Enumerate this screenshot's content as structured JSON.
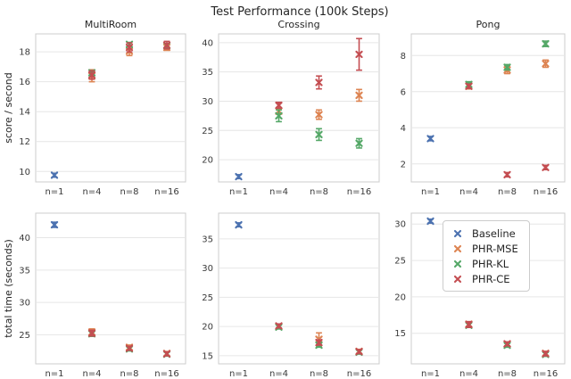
{
  "figure": {
    "title": "Test Performance (100k Steps)"
  },
  "legend": {
    "position": "inside bottom-right subplot, top-right corner",
    "items": [
      {
        "label": "Baseline",
        "color": "#4C72B0",
        "marker": "x"
      },
      {
        "label": "PHR-MSE",
        "color": "#DD8452",
        "marker": "x"
      },
      {
        "label": "PHR-KL",
        "color": "#55A868",
        "marker": "x"
      },
      {
        "label": "PHR-CE",
        "color": "#C44E52",
        "marker": "x"
      }
    ]
  },
  "colors": {
    "baseline_blue": "#4C72B0",
    "phr_mse_orange": "#DD8452",
    "phr_kl_green": "#55A868",
    "phr_ce_red": "#C44E52",
    "grid": "#e6e6e6",
    "spine": "#cccccc",
    "text": "#262626"
  },
  "chart_data": [
    {
      "type": "scatter",
      "title": "MultiRoom",
      "row": 0,
      "col": 0,
      "ylabel": "score / second",
      "categories": [
        "n=1",
        "n=4",
        "n=8",
        "n=16"
      ],
      "yticks": [
        10,
        12,
        14,
        16,
        18
      ],
      "ylim": [
        9.3,
        19.2
      ],
      "grid": "horizontal",
      "series": [
        {
          "name": "Baseline",
          "color": "#4C72B0",
          "points": [
            {
              "x": "n=1",
              "y": 9.75,
              "err": 0.12
            }
          ]
        },
        {
          "name": "PHR-MSE",
          "color": "#DD8452",
          "points": [
            {
              "x": "n=4",
              "y": 16.4,
              "err": 0.4
            },
            {
              "x": "n=8",
              "y": 18.05,
              "err": 0.3
            },
            {
              "x": "n=16",
              "y": 18.3,
              "err": 0.2
            }
          ]
        },
        {
          "name": "PHR-KL",
          "color": "#55A868",
          "points": [
            {
              "x": "n=4",
              "y": 16.6,
              "err": 0.15
            },
            {
              "x": "n=8",
              "y": 18.5,
              "err": 0.12
            },
            {
              "x": "n=16",
              "y": 18.42,
              "err": 0.15
            }
          ]
        },
        {
          "name": "PHR-CE",
          "color": "#C44E52",
          "points": [
            {
              "x": "n=4",
              "y": 16.45,
              "err": 0.28
            },
            {
              "x": "n=8",
              "y": 18.3,
              "err": 0.3
            },
            {
              "x": "n=16",
              "y": 18.45,
              "err": 0.25
            }
          ]
        }
      ]
    },
    {
      "type": "scatter",
      "title": "Crossing",
      "row": 0,
      "col": 1,
      "ylabel": "",
      "categories": [
        "n=1",
        "n=4",
        "n=8",
        "n=16"
      ],
      "yticks": [
        20,
        25,
        30,
        35,
        40
      ],
      "ylim": [
        16.2,
        41.5
      ],
      "grid": "horizontal",
      "series": [
        {
          "name": "Baseline",
          "color": "#4C72B0",
          "points": [
            {
              "x": "n=1",
              "y": 17.1,
              "err": 0.3
            }
          ]
        },
        {
          "name": "PHR-MSE",
          "color": "#DD8452",
          "points": [
            {
              "x": "n=4",
              "y": 28.3,
              "err": 0.45
            },
            {
              "x": "n=8",
              "y": 27.7,
              "err": 0.8
            },
            {
              "x": "n=16",
              "y": 31.0,
              "err": 1.0
            }
          ]
        },
        {
          "name": "PHR-KL",
          "color": "#55A868",
          "points": [
            {
              "x": "n=4",
              "y": 27.5,
              "err": 1.0
            },
            {
              "x": "n=8",
              "y": 24.3,
              "err": 1.0
            },
            {
              "x": "n=16",
              "y": 22.8,
              "err": 0.8
            }
          ]
        },
        {
          "name": "PHR-CE",
          "color": "#C44E52",
          "points": [
            {
              "x": "n=4",
              "y": 29.3,
              "err": 0.5
            },
            {
              "x": "n=8",
              "y": 33.2,
              "err": 1.1
            },
            {
              "x": "n=16",
              "y": 38.0,
              "err": 2.7
            }
          ]
        }
      ]
    },
    {
      "type": "scatter",
      "title": "Pong",
      "row": 0,
      "col": 2,
      "ylabel": "",
      "categories": [
        "n=1",
        "n=4",
        "n=8",
        "n=16"
      ],
      "yticks": [
        2,
        4,
        6,
        8
      ],
      "ylim": [
        1.0,
        9.2
      ],
      "grid": "horizontal",
      "series": [
        {
          "name": "Baseline",
          "color": "#4C72B0",
          "points": [
            {
              "x": "n=1",
              "y": 3.4,
              "err": 0.12
            }
          ]
        },
        {
          "name": "PHR-MSE",
          "color": "#DD8452",
          "points": [
            {
              "x": "n=4",
              "y": 6.3,
              "err": 0.15
            },
            {
              "x": "n=8",
              "y": 7.2,
              "err": 0.2
            },
            {
              "x": "n=16",
              "y": 7.55,
              "err": 0.2
            }
          ]
        },
        {
          "name": "PHR-KL",
          "color": "#55A868",
          "points": [
            {
              "x": "n=4",
              "y": 6.4,
              "err": 0.15
            },
            {
              "x": "n=8",
              "y": 7.35,
              "err": 0.15
            },
            {
              "x": "n=16",
              "y": 8.65,
              "err": 0.15
            }
          ]
        },
        {
          "name": "PHR-CE",
          "color": "#C44E52",
          "points": [
            {
              "x": "n=4",
              "y": 6.3,
              "err": 0.12
            },
            {
              "x": "n=8",
              "y": 1.4,
              "err": 0.12
            },
            {
              "x": "n=16",
              "y": 1.8,
              "err": 0.12
            }
          ]
        }
      ]
    },
    {
      "type": "scatter",
      "title": "",
      "row": 1,
      "col": 0,
      "ylabel": "total time (seconds)",
      "categories": [
        "n=1",
        "n=4",
        "n=8",
        "n=16"
      ],
      "yticks": [
        25,
        30,
        35,
        40
      ],
      "ylim": [
        20.5,
        43.8
      ],
      "grid": "horizontal",
      "series": [
        {
          "name": "Baseline",
          "color": "#4C72B0",
          "points": [
            {
              "x": "n=1",
              "y": 42.0,
              "err": 0.4
            }
          ]
        },
        {
          "name": "PHR-MSE",
          "color": "#DD8452",
          "points": [
            {
              "x": "n=4",
              "y": 25.4,
              "err": 0.5
            },
            {
              "x": "n=8",
              "y": 23.05,
              "err": 0.35
            },
            {
              "x": "n=16",
              "y": 22.1,
              "err": 0.3
            }
          ]
        },
        {
          "name": "PHR-KL",
          "color": "#55A868",
          "points": [
            {
              "x": "n=4",
              "y": 25.15,
              "err": 0.4
            },
            {
              "x": "n=8",
              "y": 22.8,
              "err": 0.3
            },
            {
              "x": "n=16",
              "y": 22.0,
              "err": 0.3
            }
          ]
        },
        {
          "name": "PHR-CE",
          "color": "#C44E52",
          "points": [
            {
              "x": "n=4",
              "y": 25.25,
              "err": 0.45
            },
            {
              "x": "n=8",
              "y": 22.9,
              "err": 0.3
            },
            {
              "x": "n=16",
              "y": 22.05,
              "err": 0.3
            }
          ]
        }
      ]
    },
    {
      "type": "scatter",
      "title": "",
      "row": 1,
      "col": 1,
      "ylabel": "",
      "categories": [
        "n=1",
        "n=4",
        "n=8",
        "n=16"
      ],
      "yticks": [
        15,
        20,
        25,
        30,
        35
      ],
      "ylim": [
        13.6,
        39.4
      ],
      "grid": "horizontal",
      "series": [
        {
          "name": "Baseline",
          "color": "#4C72B0",
          "points": [
            {
              "x": "n=1",
              "y": 37.4,
              "err": 0.3
            }
          ]
        },
        {
          "name": "PHR-MSE",
          "color": "#DD8452",
          "points": [
            {
              "x": "n=4",
              "y": 20.0,
              "err": 0.3
            },
            {
              "x": "n=8",
              "y": 17.8,
              "err": 1.1
            },
            {
              "x": "n=16",
              "y": 15.75,
              "err": 0.3
            }
          ]
        },
        {
          "name": "PHR-KL",
          "color": "#55A868",
          "points": [
            {
              "x": "n=4",
              "y": 19.9,
              "err": 0.3
            },
            {
              "x": "n=8",
              "y": 16.8,
              "err": 0.35
            },
            {
              "x": "n=16",
              "y": 15.6,
              "err": 0.3
            }
          ]
        },
        {
          "name": "PHR-CE",
          "color": "#C44E52",
          "points": [
            {
              "x": "n=4",
              "y": 20.1,
              "err": 0.3
            },
            {
              "x": "n=8",
              "y": 17.25,
              "err": 0.45
            },
            {
              "x": "n=16",
              "y": 15.7,
              "err": 0.3
            }
          ]
        }
      ]
    },
    {
      "type": "scatter",
      "title": "",
      "row": 1,
      "col": 2,
      "ylabel": "",
      "categories": [
        "n=1",
        "n=4",
        "n=8",
        "n=16"
      ],
      "yticks": [
        15,
        20,
        25,
        30
      ],
      "ylim": [
        10.8,
        31.5
      ],
      "grid": "horizontal",
      "series": [
        {
          "name": "Baseline",
          "color": "#4C72B0",
          "points": [
            {
              "x": "n=1",
              "y": 30.4,
              "err": 0.2
            }
          ]
        },
        {
          "name": "PHR-MSE",
          "color": "#DD8452",
          "points": [
            {
              "x": "n=4",
              "y": 16.25,
              "err": 0.3
            },
            {
              "x": "n=8",
              "y": 13.55,
              "err": 0.2
            },
            {
              "x": "n=16",
              "y": 12.25,
              "err": 0.25
            }
          ]
        },
        {
          "name": "PHR-KL",
          "color": "#55A868",
          "points": [
            {
              "x": "n=4",
              "y": 16.1,
              "err": 0.3
            },
            {
              "x": "n=8",
              "y": 13.35,
              "err": 0.2
            },
            {
              "x": "n=16",
              "y": 12.1,
              "err": 0.2
            }
          ]
        },
        {
          "name": "PHR-CE",
          "color": "#C44E52",
          "points": [
            {
              "x": "n=4",
              "y": 16.2,
              "err": 0.4
            },
            {
              "x": "n=8",
              "y": 13.55,
              "err": 0.25
            },
            {
              "x": "n=16",
              "y": 12.2,
              "err": 0.3
            }
          ]
        }
      ]
    }
  ]
}
